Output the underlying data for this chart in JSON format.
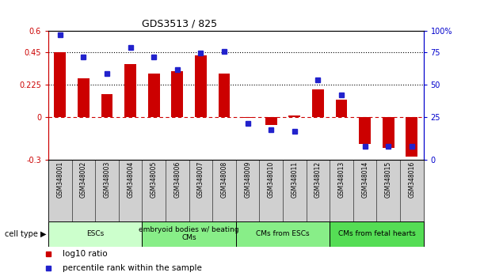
{
  "title": "GDS3513 / 825",
  "samples": [
    "GSM348001",
    "GSM348002",
    "GSM348003",
    "GSM348004",
    "GSM348005",
    "GSM348006",
    "GSM348007",
    "GSM348008",
    "GSM348009",
    "GSM348010",
    "GSM348011",
    "GSM348012",
    "GSM348013",
    "GSM348014",
    "GSM348015",
    "GSM348016"
  ],
  "log10_ratio": [
    0.45,
    0.27,
    0.16,
    0.37,
    0.3,
    0.32,
    0.43,
    0.3,
    -0.01,
    -0.06,
    0.01,
    0.19,
    0.12,
    -0.19,
    -0.22,
    -0.28
  ],
  "percentile_rank": [
    97,
    80,
    67,
    87,
    80,
    70,
    83,
    84,
    28,
    23,
    22,
    62,
    50,
    10,
    10,
    10
  ],
  "ylim_left": [
    -0.3,
    0.6
  ],
  "yticks_left": [
    -0.3,
    0,
    0.225,
    0.45,
    0.6
  ],
  "ytick_labels_left": [
    "-0.3",
    "0",
    "0.225",
    "0.45",
    "0.6"
  ],
  "yticks_right_pos": [
    -0.3,
    0.0,
    0.225,
    0.45,
    0.6
  ],
  "ytick_labels_right": [
    "0",
    "25",
    "50",
    "75",
    "100%"
  ],
  "hlines": [
    0.225,
    0.45
  ],
  "bar_color": "#cc0000",
  "dot_color": "#2222cc",
  "cell_type_groups": [
    {
      "label": "ESCs",
      "start": 0,
      "end": 3,
      "color": "#ccffcc"
    },
    {
      "label": "embryoid bodies w/ beating\nCMs",
      "start": 4,
      "end": 7,
      "color": "#88ee88"
    },
    {
      "label": "CMs from ESCs",
      "start": 8,
      "end": 11,
      "color": "#88ee88"
    },
    {
      "label": "CMs from fetal hearts",
      "start": 12,
      "end": 15,
      "color": "#55dd55"
    }
  ],
  "cell_type_label": "cell type",
  "legend_bar_label": "log10 ratio",
  "legend_dot_label": "percentile rank within the sample",
  "right_axis_color": "#0000cc",
  "left_axis_color": "#cc0000",
  "zero_line_color": "#cc0000",
  "bg_color": "#ffffff",
  "sample_bg_color": "#d0d0d0",
  "bar_width": 0.5
}
